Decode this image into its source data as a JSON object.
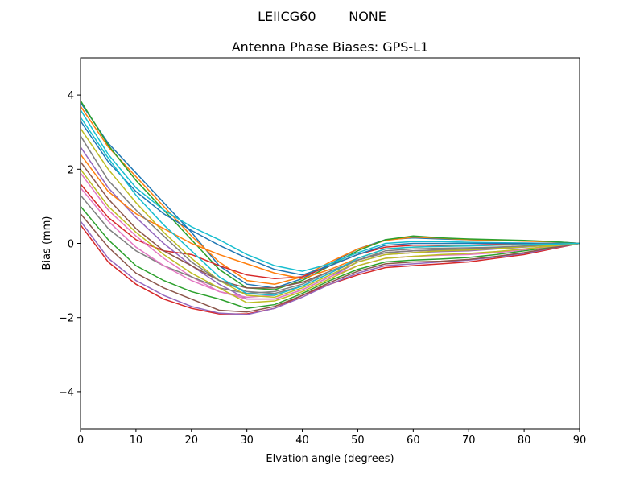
{
  "chart_data": {
    "type": "line",
    "suptitle": "LEIICG60        NONE",
    "title": "Antenna Phase Biases: GPS-L1",
    "xlabel": "Elvation angle (degrees)",
    "ylabel": "Bias (mm)",
    "xlim": [
      0,
      90
    ],
    "ylim": [
      -5,
      5
    ],
    "xticks": [
      0,
      10,
      20,
      30,
      40,
      50,
      60,
      70,
      80,
      90
    ],
    "yticks": [
      -4,
      -2,
      0,
      2,
      4
    ],
    "ytick_labels": [
      "−4",
      "−2",
      "0",
      "2",
      "4"
    ],
    "grid": false,
    "colors": [
      "#1f77b4",
      "#ff7f0e",
      "#2ca02c",
      "#d62728",
      "#9467bd",
      "#8c564b",
      "#e377c2",
      "#7f7f7f",
      "#bcbd22",
      "#17becf"
    ],
    "x": [
      0,
      5,
      10,
      15,
      20,
      25,
      30,
      35,
      40,
      45,
      50,
      55,
      60,
      65,
      70,
      75,
      80,
      85,
      90
    ],
    "series": [
      {
        "values": [
          3.8,
          2.7,
          1.9,
          1.1,
          0.3,
          -0.6,
          -1.1,
          -1.2,
          -0.95,
          -0.55,
          -0.15,
          0.1,
          0.15,
          0.12,
          0.1,
          0.08,
          0.07,
          0.05,
          0
        ]
      },
      {
        "values": [
          3.7,
          2.6,
          1.8,
          1.0,
          0.2,
          -0.5,
          -1.0,
          -1.1,
          -0.9,
          -0.5,
          -0.15,
          0.08,
          0.17,
          0.14,
          0.1,
          0.08,
          0.06,
          0.04,
          0
        ]
      },
      {
        "values": [
          3.85,
          2.65,
          1.7,
          0.9,
          0.1,
          -0.7,
          -1.2,
          -1.25,
          -1.0,
          -0.6,
          -0.2,
          0.1,
          0.2,
          0.15,
          0.12,
          0.1,
          0.08,
          0.05,
          0
        ]
      },
      {
        "values": [
          1.6,
          0.7,
          0.1,
          -0.2,
          -0.3,
          -0.6,
          -0.85,
          -0.95,
          -0.9,
          -0.6,
          -0.3,
          -0.1,
          -0.05,
          -0.05,
          -0.05,
          -0.03,
          -0.02,
          -0.01,
          0
        ]
      },
      {
        "values": [
          2.6,
          1.5,
          0.7,
          0.0,
          -0.6,
          -1.1,
          -1.5,
          -1.5,
          -1.25,
          -0.9,
          -0.5,
          -0.3,
          -0.25,
          -0.22,
          -0.2,
          -0.15,
          -0.1,
          -0.05,
          0
        ]
      },
      {
        "values": [
          2.2,
          1.2,
          0.4,
          -0.2,
          -0.6,
          -1.0,
          -1.2,
          -1.2,
          -1.05,
          -0.75,
          -0.45,
          -0.25,
          -0.2,
          -0.18,
          -0.16,
          -0.12,
          -0.08,
          -0.04,
          0
        ]
      },
      {
        "values": [
          1.9,
          0.9,
          0.2,
          -0.4,
          -0.9,
          -1.3,
          -1.45,
          -1.4,
          -1.15,
          -0.8,
          -0.45,
          -0.25,
          -0.2,
          -0.18,
          -0.15,
          -0.12,
          -0.08,
          -0.04,
          0
        ]
      },
      {
        "values": [
          1.3,
          0.4,
          -0.2,
          -0.6,
          -0.9,
          -1.2,
          -1.35,
          -1.3,
          -1.1,
          -0.75,
          -0.45,
          -0.25,
          -0.2,
          -0.17,
          -0.15,
          -0.12,
          -0.08,
          -0.04,
          0
        ]
      },
      {
        "values": [
          3.1,
          2.0,
          1.1,
          0.3,
          -0.4,
          -1.0,
          -1.4,
          -1.45,
          -1.2,
          -0.85,
          -0.5,
          -0.3,
          -0.25,
          -0.2,
          -0.18,
          -0.14,
          -0.09,
          -0.05,
          0
        ]
      },
      {
        "values": [
          3.6,
          2.4,
          1.5,
          0.9,
          0.45,
          0.1,
          -0.3,
          -0.6,
          -0.75,
          -0.55,
          -0.25,
          0.0,
          0.05,
          0.05,
          0.03,
          0.02,
          0.01,
          0.0,
          0
        ]
      },
      {
        "values": [
          3.3,
          2.2,
          1.4,
          0.8,
          0.35,
          -0.05,
          -0.4,
          -0.7,
          -0.85,
          -0.6,
          -0.3,
          -0.05,
          0.0,
          0.0,
          0.0,
          0.0,
          0.0,
          0.0,
          0
        ]
      },
      {
        "values": [
          2.4,
          1.4,
          0.8,
          0.4,
          0.0,
          -0.3,
          -0.55,
          -0.8,
          -0.95,
          -0.7,
          -0.4,
          -0.15,
          -0.1,
          -0.08,
          -0.06,
          -0.05,
          -0.03,
          -0.02,
          0
        ]
      },
      {
        "values": [
          1.0,
          0.1,
          -0.6,
          -1.0,
          -1.3,
          -1.5,
          -1.75,
          -1.65,
          -1.35,
          -1.0,
          -0.7,
          -0.5,
          -0.45,
          -0.42,
          -0.38,
          -0.3,
          -0.2,
          -0.1,
          0
        ]
      },
      {
        "values": [
          0.5,
          -0.5,
          -1.1,
          -1.5,
          -1.75,
          -1.9,
          -1.9,
          -1.75,
          -1.4,
          -1.1,
          -0.85,
          -0.65,
          -0.6,
          -0.55,
          -0.5,
          -0.4,
          -0.3,
          -0.15,
          0
        ]
      },
      {
        "values": [
          0.6,
          -0.4,
          -1.0,
          -1.4,
          -1.7,
          -1.88,
          -1.92,
          -1.75,
          -1.45,
          -1.1,
          -0.8,
          -0.6,
          -0.55,
          -0.5,
          -0.45,
          -0.37,
          -0.27,
          -0.13,
          0
        ]
      },
      {
        "values": [
          0.8,
          -0.1,
          -0.8,
          -1.2,
          -1.5,
          -1.8,
          -1.85,
          -1.7,
          -1.4,
          -1.05,
          -0.75,
          -0.55,
          -0.5,
          -0.48,
          -0.43,
          -0.35,
          -0.25,
          -0.12,
          0
        ]
      },
      {
        "values": [
          1.5,
          0.6,
          -0.1,
          -0.6,
          -1.0,
          -1.3,
          -1.5,
          -1.5,
          -1.25,
          -0.9,
          -0.6,
          -0.4,
          -0.35,
          -0.32,
          -0.3,
          -0.25,
          -0.17,
          -0.08,
          0
        ]
      },
      {
        "values": [
          2.9,
          1.7,
          0.9,
          0.2,
          -0.5,
          -1.0,
          -1.3,
          -1.35,
          -1.15,
          -0.8,
          -0.45,
          -0.2,
          -0.15,
          -0.13,
          -0.12,
          -0.1,
          -0.07,
          -0.03,
          0
        ]
      },
      {
        "values": [
          2.0,
          1.0,
          0.3,
          -0.3,
          -0.8,
          -1.2,
          -1.6,
          -1.55,
          -1.3,
          -0.95,
          -0.6,
          -0.4,
          -0.35,
          -0.3,
          -0.27,
          -0.22,
          -0.15,
          -0.07,
          0
        ]
      },
      {
        "values": [
          3.4,
          2.3,
          1.3,
          0.5,
          -0.2,
          -0.9,
          -1.35,
          -1.4,
          -1.15,
          -0.8,
          -0.4,
          -0.15,
          -0.1,
          -0.08,
          -0.07,
          -0.05,
          -0.03,
          -0.02,
          0
        ]
      }
    ]
  }
}
